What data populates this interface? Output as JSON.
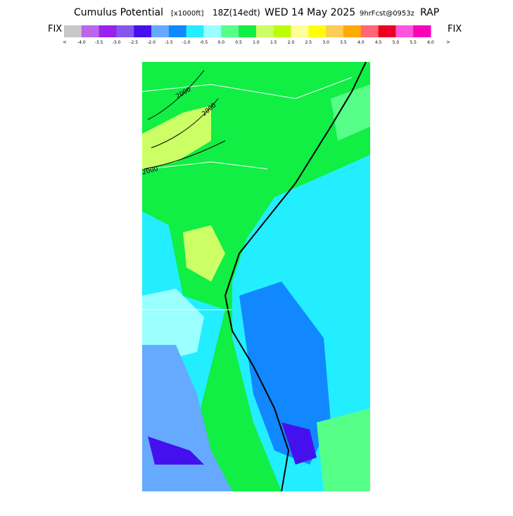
{
  "header": {
    "title": "Cumulus Potential",
    "units": "[x1000ft]",
    "time": "18Z(14edt)",
    "date": "WED 14 May 2025",
    "forecast": "9hrFcst@0953z",
    "model": "RAP"
  },
  "legend": {
    "left_label": "FIX",
    "right_label": "FIX",
    "low_arrow": "<",
    "high_arrow": ">",
    "colors": [
      "#c8c8c8",
      "#bb66ee",
      "#9922ee",
      "#8855ee",
      "#4411ee",
      "#66aaff",
      "#1188ff",
      "#22eeff",
      "#99ffff",
      "#55ff88",
      "#11ee44",
      "#ccff66",
      "#bbff00",
      "#ffff99",
      "#ffff00",
      "#ffcc55",
      "#ffaa00",
      "#ff6677",
      "#ee0022",
      "#ff55dd",
      "#ff00bb"
    ],
    "labels": [
      "-4.0",
      "-3.5",
      "-3.0",
      "-2.5",
      "-2.0",
      "-1.5",
      "-1.0",
      "-0.5",
      "0.0",
      "0.5",
      "1.0",
      "1.5",
      "2.0",
      "2.5",
      "3.0",
      "3.5",
      "4.0",
      "4.5",
      "5.0",
      "5.5",
      "6.0"
    ]
  },
  "map": {
    "contour_labels": [
      "2000",
      "2000",
      "2000"
    ]
  }
}
